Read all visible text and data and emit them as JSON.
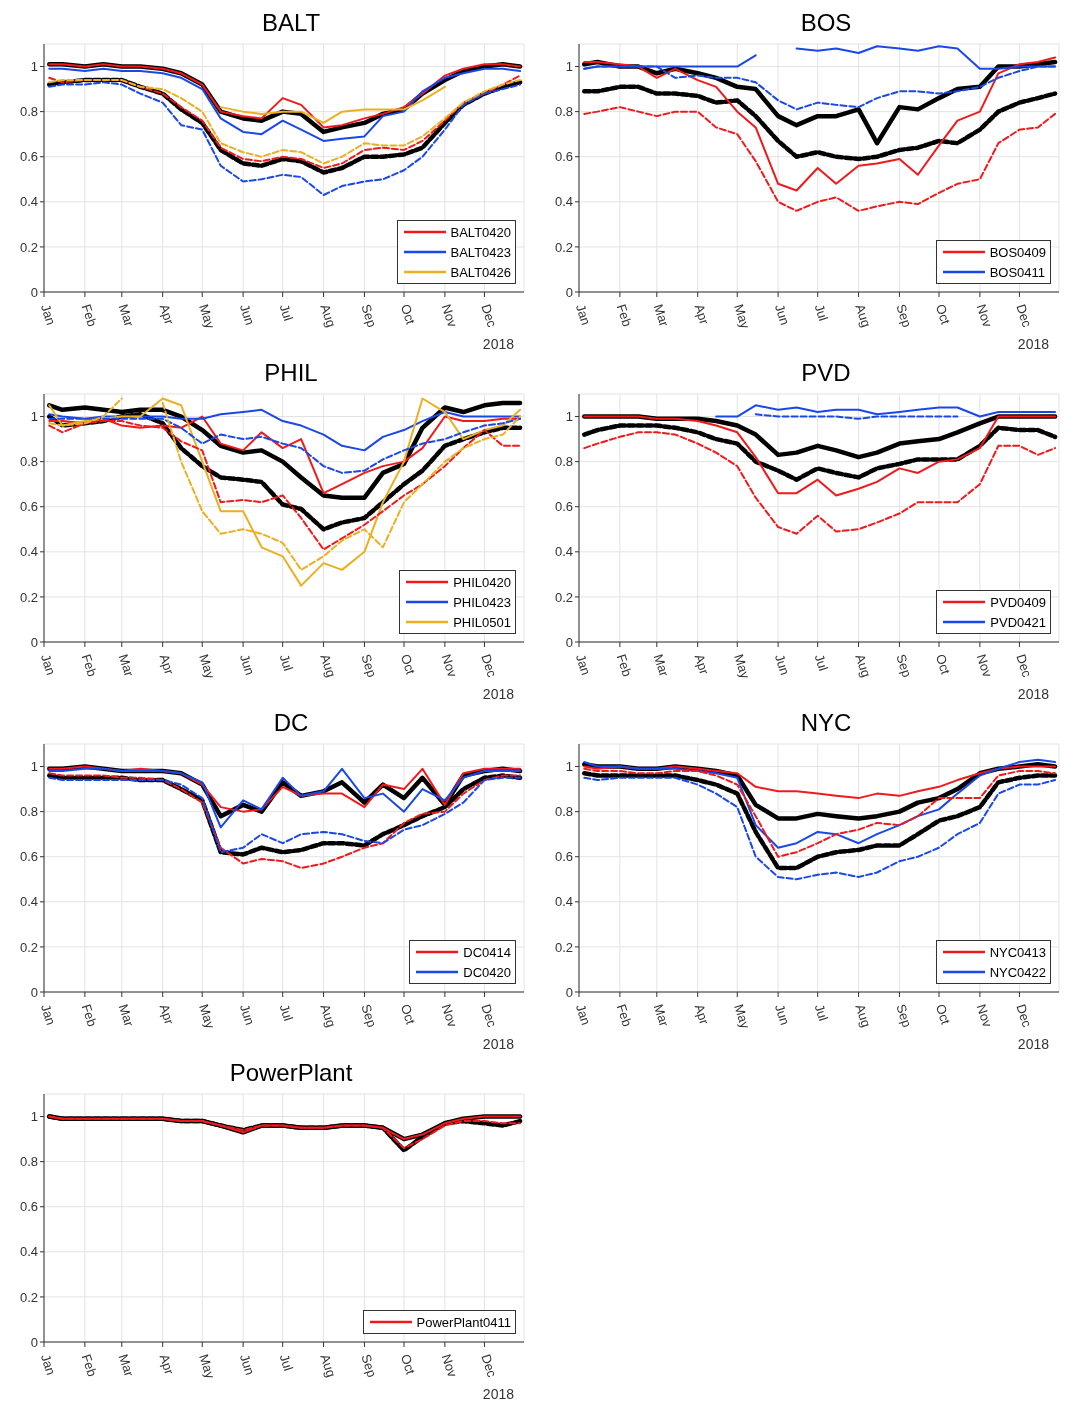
{
  "chart_data": [
    {
      "type": "line",
      "title": "BALT",
      "x": [
        "2018-01-05",
        "2018-01-15",
        "2018-02-01",
        "2018-02-15",
        "2018-03-01",
        "2018-03-15",
        "2018-04-01",
        "2018-04-15",
        "2018-05-01",
        "2018-05-15",
        "2018-06-01",
        "2018-06-15",
        "2018-07-01",
        "2018-07-15",
        "2018-08-01",
        "2018-08-15",
        "2018-09-01",
        "2018-09-15",
        "2018-10-01",
        "2018-10-15",
        "2018-11-01",
        "2018-11-15",
        "2018-12-01",
        "2018-12-15",
        "2018-12-28"
      ],
      "xlim": [
        "2018-01-01",
        "2018-12-31"
      ],
      "xticks": [
        {
          "value": "2018-01-01",
          "label": "Jan"
        },
        {
          "value": "2018-02-01",
          "label": "Feb"
        },
        {
          "value": "2018-03-01",
          "label": "Mar"
        },
        {
          "value": "2018-04-01",
          "label": "Apr"
        },
        {
          "value": "2018-05-01",
          "label": "May"
        },
        {
          "value": "2018-06-01",
          "label": "Jun"
        },
        {
          "value": "2018-07-01",
          "label": "Jul"
        },
        {
          "value": "2018-08-01",
          "label": "Aug"
        },
        {
          "value": "2018-09-01",
          "label": "Sep"
        },
        {
          "value": "2018-10-01",
          "label": "Oct"
        },
        {
          "value": "2018-11-01",
          "label": "Nov"
        },
        {
          "value": "2018-12-01",
          "label": "Dec"
        }
      ],
      "ylim": [
        0,
        1.1
      ],
      "yticks": [
        0,
        0.2,
        0.4,
        0.6,
        0.8,
        1
      ],
      "grid": true,
      "legend": "bottom right",
      "annotations": [
        "2018"
      ],
      "series": [
        {
          "name": "BALT0420",
          "color": "#f0191c",
          "line_style": "solid",
          "values": [
            1.01,
            1.01,
            1.0,
            1.01,
            1.0,
            1.0,
            0.99,
            0.97,
            0.92,
            0.8,
            0.78,
            0.77,
            0.86,
            0.83,
            0.73,
            0.74,
            0.77,
            0.79,
            0.82,
            0.88,
            0.96,
            0.99,
            1.01,
            1.01,
            1.0
          ]
        },
        {
          "name": "BALT0423",
          "color": "#1a48e8",
          "line_style": "solid",
          "values": [
            0.99,
            0.99,
            0.98,
            0.99,
            0.98,
            0.98,
            0.97,
            0.95,
            0.9,
            0.77,
            0.71,
            0.7,
            0.76,
            0.72,
            0.67,
            0.68,
            0.69,
            0.78,
            0.8,
            0.89,
            0.95,
            0.97,
            0.99,
            0.99,
            0.98
          ]
        },
        {
          "name": "BALT0426",
          "color": "#ebb021",
          "line_style": "solid",
          "values": [
            null,
            null,
            null,
            null,
            null,
            null,
            null,
            null,
            null,
            0.82,
            0.8,
            0.79,
            0.8,
            0.8,
            0.75,
            0.8,
            0.81,
            0.81,
            0.81,
            0.85,
            0.91,
            null,
            null,
            null,
            null
          ]
        },
        {
          "color": "#f0191c",
          "line_style": "dashed",
          "values": [
            0.95,
            0.93,
            0.94,
            0.94,
            0.94,
            0.91,
            0.88,
            0.82,
            0.76,
            0.64,
            0.59,
            0.58,
            0.6,
            0.59,
            0.55,
            0.57,
            0.63,
            0.64,
            0.63,
            0.67,
            0.76,
            0.84,
            0.88,
            0.92,
            0.96
          ]
        },
        {
          "color": "#1a48e8",
          "line_style": "dashed",
          "values": [
            0.91,
            0.92,
            0.92,
            0.93,
            0.92,
            0.88,
            0.84,
            0.74,
            0.72,
            0.56,
            0.49,
            0.5,
            0.52,
            0.51,
            0.43,
            0.47,
            0.49,
            0.5,
            0.54,
            0.6,
            0.72,
            0.83,
            0.88,
            0.9,
            0.92
          ]
        },
        {
          "color": "#ebb021",
          "line_style": "dashed",
          "values": [
            0.93,
            0.94,
            0.94,
            0.94,
            0.94,
            0.91,
            0.9,
            0.86,
            0.8,
            0.66,
            0.62,
            0.6,
            0.63,
            0.62,
            0.57,
            0.6,
            0.66,
            0.65,
            0.65,
            0.69,
            0.77,
            0.84,
            0.89,
            0.92,
            0.94
          ]
        },
        {
          "color": "#000000",
          "line_style": "dashed",
          "values": [
            0.92,
            0.93,
            0.94,
            0.94,
            0.94,
            0.91,
            0.88,
            0.81,
            0.75,
            0.63,
            0.57,
            0.56,
            0.59,
            0.58,
            0.53,
            0.55,
            0.6,
            0.6,
            0.61,
            0.64,
            0.75,
            0.83,
            0.88,
            0.91,
            0.93
          ]
        },
        {
          "color": "#000000",
          "line_style": "solid",
          "values": [
            1.01,
            1.01,
            1.0,
            1.01,
            1.0,
            1.0,
            0.99,
            0.97,
            0.92,
            0.8,
            0.77,
            0.76,
            0.8,
            0.79,
            0.71,
            0.73,
            0.75,
            0.79,
            0.81,
            0.88,
            0.94,
            0.98,
            1.0,
            1.01,
            1.0
          ]
        }
      ]
    },
    {
      "type": "line",
      "title": "BOS",
      "x": [
        "2018-01-05",
        "2018-01-15",
        "2018-02-01",
        "2018-02-15",
        "2018-03-01",
        "2018-03-15",
        "2018-04-01",
        "2018-04-15",
        "2018-05-01",
        "2018-05-15",
        "2018-06-01",
        "2018-06-15",
        "2018-07-01",
        "2018-07-15",
        "2018-08-01",
        "2018-08-15",
        "2018-09-01",
        "2018-09-15",
        "2018-10-01",
        "2018-10-15",
        "2018-11-01",
        "2018-11-15",
        "2018-12-01",
        "2018-12-15",
        "2018-12-28"
      ],
      "xlim": [
        "2018-01-01",
        "2018-12-31"
      ],
      "xticks": [
        {
          "value": "2018-01-01",
          "label": "Jan"
        },
        {
          "value": "2018-02-01",
          "label": "Feb"
        },
        {
          "value": "2018-03-01",
          "label": "Mar"
        },
        {
          "value": "2018-04-01",
          "label": "Apr"
        },
        {
          "value": "2018-05-01",
          "label": "May"
        },
        {
          "value": "2018-06-01",
          "label": "Jun"
        },
        {
          "value": "2018-07-01",
          "label": "Jul"
        },
        {
          "value": "2018-08-01",
          "label": "Aug"
        },
        {
          "value": "2018-09-01",
          "label": "Sep"
        },
        {
          "value": "2018-10-01",
          "label": "Oct"
        },
        {
          "value": "2018-11-01",
          "label": "Nov"
        },
        {
          "value": "2018-12-01",
          "label": "Dec"
        }
      ],
      "ylim": [
        0,
        1.1
      ],
      "yticks": [
        0,
        0.2,
        0.4,
        0.6,
        0.8,
        1
      ],
      "grid": true,
      "legend": "bottom right",
      "annotations": [
        "2018"
      ],
      "series": [
        {
          "name": "BOS0409",
          "color": "#f0191c",
          "line_style": "solid",
          "values": [
            1.02,
            1.02,
            1.01,
            1.0,
            0.95,
            0.99,
            0.94,
            0.91,
            0.8,
            0.73,
            0.48,
            0.45,
            0.55,
            0.48,
            0.56,
            0.57,
            0.59,
            0.52,
            0.65,
            0.76,
            0.8,
            0.97,
            1.01,
            1.02,
            1.04
          ]
        },
        {
          "name": "BOS0411",
          "color": "#1a48e8",
          "line_style": "solid",
          "values": [
            0.99,
            1.0,
            1.0,
            1.0,
            1.0,
            1.0,
            1.0,
            1.0,
            1.0,
            1.05,
            null,
            1.08,
            1.07,
            1.08,
            1.06,
            1.09,
            1.08,
            1.07,
            1.09,
            1.08,
            0.99,
            0.99,
            1.0,
            1.0,
            1.0
          ]
        },
        {
          "color": "#f0191c",
          "line_style": "dashed",
          "values": [
            0.79,
            0.8,
            0.82,
            0.8,
            0.78,
            0.8,
            0.8,
            0.73,
            0.7,
            0.58,
            0.4,
            0.36,
            0.4,
            0.42,
            0.36,
            0.38,
            0.4,
            0.39,
            0.44,
            0.48,
            0.5,
            0.66,
            0.72,
            0.73,
            0.79
          ]
        },
        {
          "color": "#1a48e8",
          "line_style": "dashed",
          "values": [
            0.99,
            1.0,
            1.0,
            1.0,
            1.0,
            0.95,
            0.96,
            0.95,
            0.95,
            0.93,
            0.85,
            0.81,
            0.84,
            0.83,
            0.82,
            0.86,
            0.89,
            0.89,
            0.88,
            0.89,
            0.91,
            0.95,
            0.98,
            1.0,
            1.0
          ]
        },
        {
          "color": "#000000",
          "line_style": "dashed",
          "values": [
            0.89,
            0.89,
            0.91,
            0.91,
            0.88,
            0.88,
            0.87,
            0.84,
            0.85,
            0.78,
            0.67,
            0.6,
            0.62,
            0.6,
            0.59,
            0.6,
            0.63,
            0.64,
            0.67,
            0.66,
            0.72,
            0.8,
            0.84,
            0.86,
            0.88
          ]
        },
        {
          "color": "#000000",
          "line_style": "solid",
          "values": [
            1.01,
            1.02,
            1.0,
            1.0,
            0.97,
            0.99,
            0.97,
            0.95,
            0.91,
            0.9,
            0.78,
            0.74,
            0.78,
            0.78,
            0.81,
            0.66,
            0.82,
            0.81,
            0.86,
            0.9,
            0.91,
            1.0,
            1.0,
            1.01,
            1.02
          ]
        }
      ]
    },
    {
      "type": "line",
      "title": "PHIL",
      "x": [
        "2018-01-05",
        "2018-01-15",
        "2018-02-01",
        "2018-02-15",
        "2018-03-01",
        "2018-03-15",
        "2018-04-01",
        "2018-04-15",
        "2018-05-01",
        "2018-05-15",
        "2018-06-01",
        "2018-06-15",
        "2018-07-01",
        "2018-07-15",
        "2018-08-01",
        "2018-08-15",
        "2018-09-01",
        "2018-09-15",
        "2018-10-01",
        "2018-10-15",
        "2018-11-01",
        "2018-11-15",
        "2018-12-01",
        "2018-12-15",
        "2018-12-28"
      ],
      "xlim": [
        "2018-01-01",
        "2018-12-31"
      ],
      "xticks": [
        {
          "value": "2018-01-01",
          "label": "Jan"
        },
        {
          "value": "2018-02-01",
          "label": "Feb"
        },
        {
          "value": "2018-03-01",
          "label": "Mar"
        },
        {
          "value": "2018-04-01",
          "label": "Apr"
        },
        {
          "value": "2018-05-01",
          "label": "May"
        },
        {
          "value": "2018-06-01",
          "label": "Jun"
        },
        {
          "value": "2018-07-01",
          "label": "Jul"
        },
        {
          "value": "2018-08-01",
          "label": "Aug"
        },
        {
          "value": "2018-09-01",
          "label": "Sep"
        },
        {
          "value": "2018-10-01",
          "label": "Oct"
        },
        {
          "value": "2018-11-01",
          "label": "Nov"
        },
        {
          "value": "2018-12-01",
          "label": "Dec"
        }
      ],
      "ylim": [
        0,
        1.1
      ],
      "yticks": [
        0,
        0.2,
        0.4,
        0.6,
        0.8,
        1
      ],
      "grid": true,
      "legend": "bottom right",
      "annotations": [
        "2018"
      ],
      "series": [
        {
          "name": "PHIL0420",
          "color": "#f0191c",
          "line_style": "solid",
          "values": [
            0.98,
            0.98,
            0.97,
            0.99,
            0.96,
            0.95,
            0.96,
            0.95,
            1.0,
            0.88,
            0.85,
            0.93,
            0.86,
            0.9,
            0.66,
            0.7,
            0.75,
            0.78,
            0.8,
            0.86,
            1.0,
            0.98,
            0.98,
            0.99,
            0.99
          ]
        },
        {
          "name": "PHIL0423",
          "color": "#1a48e8",
          "line_style": "solid",
          "values": [
            1.01,
            1.0,
            0.99,
            1.0,
            1.0,
            1.0,
            1.0,
            0.99,
            0.99,
            1.01,
            1.02,
            1.03,
            0.98,
            0.96,
            0.92,
            0.87,
            0.85,
            0.91,
            0.94,
            0.98,
            1.02,
            1.0,
            1.0,
            1.0,
            1.0
          ]
        },
        {
          "name": "PHIL0501",
          "color": "#ebb021",
          "line_style": "solid",
          "values": [
            1.05,
            0.96,
            0.98,
            0.99,
            1.0,
            1.0,
            1.08,
            1.05,
            0.8,
            0.58,
            0.58,
            0.42,
            0.38,
            0.25,
            0.35,
            0.32,
            0.4,
            0.62,
            0.8,
            1.08,
            1.02,
            0.9,
            0.94,
            0.96,
            1.03
          ]
        },
        {
          "color": "#f0191c",
          "line_style": "dashed",
          "values": [
            0.96,
            0.93,
            0.97,
            0.98,
            0.98,
            0.96,
            0.95,
            0.89,
            0.85,
            0.62,
            0.63,
            0.62,
            0.65,
            0.55,
            0.41,
            0.46,
            0.52,
            0.58,
            0.65,
            0.7,
            0.78,
            0.86,
            0.94,
            0.87,
            0.87
          ]
        },
        {
          "color": "#1a48e8",
          "line_style": "dashed",
          "values": [
            0.99,
            0.99,
            0.99,
            0.99,
            0.99,
            0.99,
            0.99,
            0.95,
            0.88,
            0.92,
            0.9,
            0.91,
            0.88,
            0.86,
            0.78,
            0.75,
            0.76,
            0.81,
            0.85,
            0.88,
            0.9,
            0.93,
            0.96,
            0.97,
            0.99
          ]
        },
        {
          "color": "#ebb021",
          "line_style": "dashed",
          "values": [
            0.97,
            0.96,
            0.97,
            1.0,
            1.08,
            null,
            1.06,
            0.8,
            0.58,
            0.48,
            0.5,
            0.48,
            0.44,
            0.32,
            0.38,
            0.45,
            0.5,
            0.42,
            0.62,
            0.7,
            0.8,
            0.86,
            0.9,
            0.92,
            1.0
          ]
        },
        {
          "color": "#000000",
          "line_style": "dashed",
          "values": [
            1.0,
            0.96,
            0.97,
            0.98,
            1.0,
            1.01,
            0.97,
            0.86,
            0.78,
            0.73,
            0.72,
            0.71,
            0.61,
            0.59,
            0.5,
            0.53,
            0.55,
            0.62,
            0.7,
            0.76,
            0.87,
            0.9,
            0.93,
            0.95,
            0.95
          ]
        },
        {
          "color": "#000000",
          "line_style": "solid",
          "values": [
            1.05,
            1.03,
            1.04,
            1.03,
            1.02,
            1.03,
            1.03,
            1.0,
            0.94,
            0.87,
            0.84,
            0.85,
            0.8,
            0.73,
            0.65,
            0.64,
            0.64,
            0.75,
            0.79,
            0.95,
            1.04,
            1.02,
            1.05,
            1.06,
            1.06
          ]
        }
      ]
    },
    {
      "type": "line",
      "title": "PVD",
      "x": [
        "2018-01-05",
        "2018-01-15",
        "2018-02-01",
        "2018-02-15",
        "2018-03-01",
        "2018-03-15",
        "2018-04-01",
        "2018-04-15",
        "2018-05-01",
        "2018-05-15",
        "2018-06-01",
        "2018-06-15",
        "2018-07-01",
        "2018-07-15",
        "2018-08-01",
        "2018-08-15",
        "2018-09-01",
        "2018-09-15",
        "2018-10-01",
        "2018-10-15",
        "2018-11-01",
        "2018-11-15",
        "2018-12-01",
        "2018-12-15",
        "2018-12-28"
      ],
      "xlim": [
        "2018-01-01",
        "2018-12-31"
      ],
      "xticks": [
        {
          "value": "2018-01-01",
          "label": "Jan"
        },
        {
          "value": "2018-02-01",
          "label": "Feb"
        },
        {
          "value": "2018-03-01",
          "label": "Mar"
        },
        {
          "value": "2018-04-01",
          "label": "Apr"
        },
        {
          "value": "2018-05-01",
          "label": "May"
        },
        {
          "value": "2018-06-01",
          "label": "Jun"
        },
        {
          "value": "2018-07-01",
          "label": "Jul"
        },
        {
          "value": "2018-08-01",
          "label": "Aug"
        },
        {
          "value": "2018-09-01",
          "label": "Sep"
        },
        {
          "value": "2018-10-01",
          "label": "Oct"
        },
        {
          "value": "2018-11-01",
          "label": "Nov"
        },
        {
          "value": "2018-12-01",
          "label": "Dec"
        }
      ],
      "ylim": [
        0,
        1.1
      ],
      "yticks": [
        0,
        0.2,
        0.4,
        0.6,
        0.8,
        1
      ],
      "grid": true,
      "legend": "bottom right",
      "annotations": [
        "2018"
      ],
      "series": [
        {
          "name": "PVD0409",
          "color": "#f0191c",
          "line_style": "solid",
          "values": [
            1.0,
            1.0,
            1.0,
            1.0,
            0.99,
            0.99,
            0.98,
            0.96,
            0.93,
            0.82,
            0.66,
            0.66,
            0.72,
            0.65,
            0.68,
            0.71,
            0.77,
            0.75,
            0.8,
            0.81,
            0.86,
            1.0,
            1.0,
            1.0,
            1.0
          ]
        },
        {
          "name": "PVD0421",
          "color": "#1a48e8",
          "line_style": "solid",
          "values": [
            null,
            null,
            null,
            null,
            null,
            null,
            null,
            1.0,
            1.0,
            1.05,
            1.03,
            1.04,
            1.02,
            1.03,
            1.03,
            1.01,
            1.02,
            1.03,
            1.04,
            1.04,
            1.0,
            1.02,
            1.02,
            1.02,
            1.02
          ]
        },
        {
          "color": "#f0191c",
          "line_style": "dashed",
          "values": [
            0.86,
            0.88,
            0.91,
            0.93,
            0.93,
            0.92,
            0.88,
            0.84,
            0.78,
            0.64,
            0.51,
            0.48,
            0.56,
            0.49,
            0.5,
            0.53,
            0.57,
            0.62,
            0.62,
            0.62,
            0.7,
            0.87,
            0.87,
            0.83,
            0.86
          ]
        },
        {
          "color": "#1a48e8",
          "line_style": "dashed",
          "values": [
            null,
            null,
            null,
            null,
            null,
            null,
            null,
            null,
            null,
            1.01,
            1.0,
            1.0,
            1.0,
            1.0,
            0.99,
            1.0,
            1.0,
            1.0,
            1.0,
            1.0,
            null,
            null,
            null,
            null,
            null
          ]
        },
        {
          "color": "#000000",
          "line_style": "dashed",
          "values": [
            0.92,
            0.94,
            0.96,
            0.96,
            0.96,
            0.95,
            0.93,
            0.9,
            0.88,
            0.8,
            0.76,
            0.72,
            0.77,
            0.75,
            0.73,
            0.77,
            0.79,
            0.81,
            0.81,
            0.81,
            0.87,
            0.95,
            0.94,
            0.94,
            0.91
          ]
        },
        {
          "color": "#000000",
          "line_style": "solid",
          "values": [
            1.0,
            1.0,
            1.0,
            1.0,
            0.99,
            0.99,
            0.99,
            0.98,
            0.96,
            0.92,
            0.83,
            0.84,
            0.87,
            0.85,
            0.82,
            0.84,
            0.88,
            0.89,
            0.9,
            0.93,
            0.97,
            1.0,
            1.0,
            1.0,
            1.0
          ]
        }
      ]
    },
    {
      "type": "line",
      "title": "DC",
      "x": [
        "2018-01-05",
        "2018-01-15",
        "2018-02-01",
        "2018-02-15",
        "2018-03-01",
        "2018-03-15",
        "2018-04-01",
        "2018-04-15",
        "2018-05-01",
        "2018-05-15",
        "2018-06-01",
        "2018-06-15",
        "2018-07-01",
        "2018-07-15",
        "2018-08-01",
        "2018-08-15",
        "2018-09-01",
        "2018-09-15",
        "2018-10-01",
        "2018-10-15",
        "2018-11-01",
        "2018-11-15",
        "2018-12-01",
        "2018-12-15",
        "2018-12-28"
      ],
      "xlim": [
        "2018-01-01",
        "2018-12-31"
      ],
      "xticks": [
        {
          "value": "2018-01-01",
          "label": "Jan"
        },
        {
          "value": "2018-02-01",
          "label": "Feb"
        },
        {
          "value": "2018-03-01",
          "label": "Mar"
        },
        {
          "value": "2018-04-01",
          "label": "Apr"
        },
        {
          "value": "2018-05-01",
          "label": "May"
        },
        {
          "value": "2018-06-01",
          "label": "Jun"
        },
        {
          "value": "2018-07-01",
          "label": "Jul"
        },
        {
          "value": "2018-08-01",
          "label": "Aug"
        },
        {
          "value": "2018-09-01",
          "label": "Sep"
        },
        {
          "value": "2018-10-01",
          "label": "Oct"
        },
        {
          "value": "2018-11-01",
          "label": "Nov"
        },
        {
          "value": "2018-12-01",
          "label": "Dec"
        }
      ],
      "ylim": [
        0,
        1.1
      ],
      "yticks": [
        0,
        0.2,
        0.4,
        0.6,
        0.8,
        1
      ],
      "grid": true,
      "legend": "bottom right",
      "annotations": [
        "2018"
      ],
      "series": [
        {
          "name": "DC0414",
          "color": "#f0191c",
          "line_style": "solid",
          "values": [
            0.99,
            0.99,
            1.0,
            0.99,
            0.98,
            0.99,
            0.98,
            0.97,
            0.92,
            0.82,
            0.8,
            0.81,
            0.91,
            0.87,
            0.88,
            0.88,
            0.82,
            0.92,
            0.9,
            0.99,
            0.83,
            0.97,
            0.99,
            0.99,
            0.99
          ]
        },
        {
          "name": "DC0420",
          "color": "#1a48e8",
          "line_style": "solid",
          "values": [
            0.98,
            0.98,
            0.99,
            0.99,
            0.98,
            0.98,
            0.98,
            0.97,
            0.93,
            0.73,
            0.85,
            0.81,
            0.95,
            0.87,
            0.89,
            0.99,
            0.86,
            0.88,
            0.8,
            0.9,
            0.85,
            0.95,
            0.98,
            0.98,
            0.98
          ]
        },
        {
          "color": "#f0191c",
          "line_style": "dashed",
          "values": [
            0.97,
            0.96,
            0.96,
            0.96,
            0.95,
            0.95,
            0.94,
            0.9,
            0.84,
            0.64,
            0.57,
            0.59,
            0.58,
            0.55,
            0.57,
            0.6,
            0.64,
            0.66,
            0.75,
            0.79,
            0.8,
            0.88,
            0.94,
            0.96,
            0.96
          ]
        },
        {
          "color": "#1a48e8",
          "line_style": "dashed",
          "values": [
            0.95,
            0.94,
            0.94,
            0.94,
            0.94,
            0.94,
            0.94,
            0.92,
            0.86,
            0.62,
            0.64,
            0.7,
            0.66,
            0.7,
            0.71,
            0.7,
            0.67,
            0.66,
            0.72,
            0.74,
            0.79,
            0.84,
            0.94,
            0.95,
            0.95
          ]
        },
        {
          "color": "#000000",
          "line_style": "dashed",
          "values": [
            0.96,
            0.95,
            0.95,
            0.95,
            0.95,
            0.94,
            0.94,
            0.9,
            0.85,
            0.62,
            0.61,
            0.64,
            0.62,
            0.63,
            0.66,
            0.66,
            0.65,
            0.7,
            0.74,
            0.78,
            0.82,
            0.9,
            0.95,
            0.96,
            0.95
          ]
        },
        {
          "color": "#000000",
          "line_style": "solid",
          "values": [
            0.99,
            0.99,
            1.0,
            0.99,
            0.98,
            0.98,
            0.98,
            0.97,
            0.92,
            0.78,
            0.83,
            0.8,
            0.93,
            0.87,
            0.89,
            0.93,
            0.84,
            0.92,
            0.86,
            0.95,
            0.83,
            0.96,
            0.98,
            0.99,
            0.98
          ]
        }
      ]
    },
    {
      "type": "line",
      "title": "NYC",
      "x": [
        "2018-01-05",
        "2018-01-15",
        "2018-02-01",
        "2018-02-15",
        "2018-03-01",
        "2018-03-15",
        "2018-04-01",
        "2018-04-15",
        "2018-05-01",
        "2018-05-15",
        "2018-06-01",
        "2018-06-15",
        "2018-07-01",
        "2018-07-15",
        "2018-08-01",
        "2018-08-15",
        "2018-09-01",
        "2018-09-15",
        "2018-10-01",
        "2018-10-15",
        "2018-11-01",
        "2018-11-15",
        "2018-12-01",
        "2018-12-15",
        "2018-12-28"
      ],
      "xlim": [
        "2018-01-01",
        "2018-12-31"
      ],
      "xticks": [
        {
          "value": "2018-01-01",
          "label": "Jan"
        },
        {
          "value": "2018-02-01",
          "label": "Feb"
        },
        {
          "value": "2018-03-01",
          "label": "Mar"
        },
        {
          "value": "2018-04-01",
          "label": "Apr"
        },
        {
          "value": "2018-05-01",
          "label": "May"
        },
        {
          "value": "2018-06-01",
          "label": "Jun"
        },
        {
          "value": "2018-07-01",
          "label": "Jul"
        },
        {
          "value": "2018-08-01",
          "label": "Aug"
        },
        {
          "value": "2018-09-01",
          "label": "Sep"
        },
        {
          "value": "2018-10-01",
          "label": "Oct"
        },
        {
          "value": "2018-11-01",
          "label": "Nov"
        },
        {
          "value": "2018-12-01",
          "label": "Dec"
        }
      ],
      "ylim": [
        0,
        1.1
      ],
      "yticks": [
        0,
        0.2,
        0.4,
        0.6,
        0.8,
        1
      ],
      "grid": true,
      "legend": "bottom right",
      "annotations": [
        "2018"
      ],
      "series": [
        {
          "name": "NYC0413",
          "color": "#f0191c",
          "line_style": "solid",
          "values": [
            1.0,
            0.99,
            1.0,
            0.99,
            0.99,
            1.0,
            0.99,
            0.98,
            0.97,
            0.91,
            0.89,
            0.89,
            0.88,
            0.87,
            0.86,
            0.88,
            0.87,
            0.89,
            0.91,
            0.94,
            0.97,
            0.99,
            1.0,
            1.0,
            1.0
          ]
        },
        {
          "name": "NYC0422",
          "color": "#1a48e8",
          "line_style": "solid",
          "values": [
            1.02,
            1.0,
            1.0,
            0.99,
            0.99,
            0.99,
            0.98,
            0.97,
            0.95,
            0.74,
            0.64,
            0.66,
            0.71,
            0.7,
            0.66,
            0.7,
            0.74,
            0.78,
            0.81,
            0.88,
            0.96,
            0.99,
            1.02,
            1.03,
            1.02
          ]
        },
        {
          "color": "#f0191c",
          "line_style": "dashed",
          "values": [
            0.99,
            0.98,
            0.98,
            0.97,
            0.97,
            0.98,
            0.98,
            0.96,
            0.92,
            0.78,
            0.6,
            0.62,
            0.66,
            0.7,
            0.72,
            0.75,
            0.74,
            0.78,
            0.86,
            0.86,
            0.86,
            0.96,
            0.98,
            0.98,
            0.97
          ]
        },
        {
          "color": "#1a48e8",
          "line_style": "dashed",
          "values": [
            0.95,
            0.94,
            0.95,
            0.95,
            0.95,
            0.95,
            0.92,
            0.88,
            0.82,
            0.6,
            0.51,
            0.5,
            0.52,
            0.53,
            0.51,
            0.53,
            0.58,
            0.6,
            0.64,
            0.7,
            0.75,
            0.88,
            0.92,
            0.92,
            0.94
          ]
        },
        {
          "color": "#000000",
          "line_style": "dashed",
          "values": [
            0.97,
            0.96,
            0.96,
            0.96,
            0.96,
            0.96,
            0.94,
            0.92,
            0.88,
            0.71,
            0.55,
            0.55,
            0.6,
            0.62,
            0.63,
            0.65,
            0.65,
            0.7,
            0.76,
            0.78,
            0.82,
            0.93,
            0.95,
            0.96,
            0.96
          ]
        },
        {
          "color": "#000000",
          "line_style": "solid",
          "values": [
            1.01,
            1.0,
            1.0,
            0.99,
            0.99,
            1.0,
            0.99,
            0.98,
            0.96,
            0.83,
            0.77,
            0.77,
            0.79,
            0.78,
            0.77,
            0.78,
            0.8,
            0.84,
            0.86,
            0.9,
            0.97,
            0.99,
            1.0,
            1.01,
            1.0
          ]
        }
      ]
    },
    {
      "type": "line",
      "title": "PowerPlant",
      "x": [
        "2018-01-05",
        "2018-01-15",
        "2018-02-01",
        "2018-02-15",
        "2018-03-01",
        "2018-03-15",
        "2018-04-01",
        "2018-04-15",
        "2018-05-01",
        "2018-05-15",
        "2018-06-01",
        "2018-06-15",
        "2018-07-01",
        "2018-07-15",
        "2018-08-01",
        "2018-08-15",
        "2018-09-01",
        "2018-09-15",
        "2018-10-01",
        "2018-10-15",
        "2018-11-01",
        "2018-11-15",
        "2018-12-01",
        "2018-12-15",
        "2018-12-28"
      ],
      "xlim": [
        "2018-01-01",
        "2018-12-31"
      ],
      "xticks": [
        {
          "value": "2018-01-01",
          "label": "Jan"
        },
        {
          "value": "2018-02-01",
          "label": "Feb"
        },
        {
          "value": "2018-03-01",
          "label": "Mar"
        },
        {
          "value": "2018-04-01",
          "label": "Apr"
        },
        {
          "value": "2018-05-01",
          "label": "May"
        },
        {
          "value": "2018-06-01",
          "label": "Jun"
        },
        {
          "value": "2018-07-01",
          "label": "Jul"
        },
        {
          "value": "2018-08-01",
          "label": "Aug"
        },
        {
          "value": "2018-09-01",
          "label": "Sep"
        },
        {
          "value": "2018-10-01",
          "label": "Oct"
        },
        {
          "value": "2018-11-01",
          "label": "Nov"
        },
        {
          "value": "2018-12-01",
          "label": "Dec"
        }
      ],
      "ylim": [
        0,
        1.1
      ],
      "yticks": [
        0,
        0.2,
        0.4,
        0.6,
        0.8,
        1
      ],
      "grid": true,
      "legend": "bottom right",
      "annotations": [
        "2018"
      ],
      "series": [
        {
          "name": "PowerPlant0411",
          "color": "#f0191c",
          "line_style": "solid",
          "values": [
            1.0,
            0.99,
            0.99,
            0.99,
            0.99,
            0.99,
            0.99,
            0.98,
            0.98,
            0.96,
            0.93,
            0.96,
            0.96,
            0.95,
            0.95,
            0.96,
            0.96,
            0.95,
            0.9,
            0.92,
            0.97,
            0.99,
            1.0,
            1.0,
            1.0
          ]
        },
        {
          "color": "#f0191c",
          "line_style": "dashed",
          "values": [
            1.0,
            0.99,
            0.99,
            0.99,
            0.99,
            0.99,
            0.99,
            0.98,
            0.98,
            0.96,
            0.94,
            0.96,
            0.96,
            0.95,
            0.95,
            0.96,
            0.96,
            0.95,
            0.86,
            0.9,
            0.96,
            0.98,
            0.98,
            0.97,
            0.97
          ]
        },
        {
          "color": "#000000",
          "line_style": "dashed",
          "values": [
            1.0,
            0.99,
            0.99,
            0.99,
            0.99,
            0.99,
            0.99,
            0.98,
            0.98,
            0.96,
            0.94,
            0.96,
            0.96,
            0.95,
            0.95,
            0.96,
            0.96,
            0.95,
            0.85,
            0.91,
            0.97,
            0.98,
            0.97,
            0.96,
            0.98
          ]
        },
        {
          "color": "#000000",
          "line_style": "solid",
          "values": [
            1.0,
            0.99,
            0.99,
            0.99,
            0.99,
            0.99,
            0.99,
            0.98,
            0.98,
            0.96,
            0.93,
            0.96,
            0.96,
            0.95,
            0.95,
            0.96,
            0.96,
            0.95,
            0.9,
            0.92,
            0.97,
            0.99,
            1.0,
            1.0,
            1.0
          ]
        }
      ]
    }
  ]
}
